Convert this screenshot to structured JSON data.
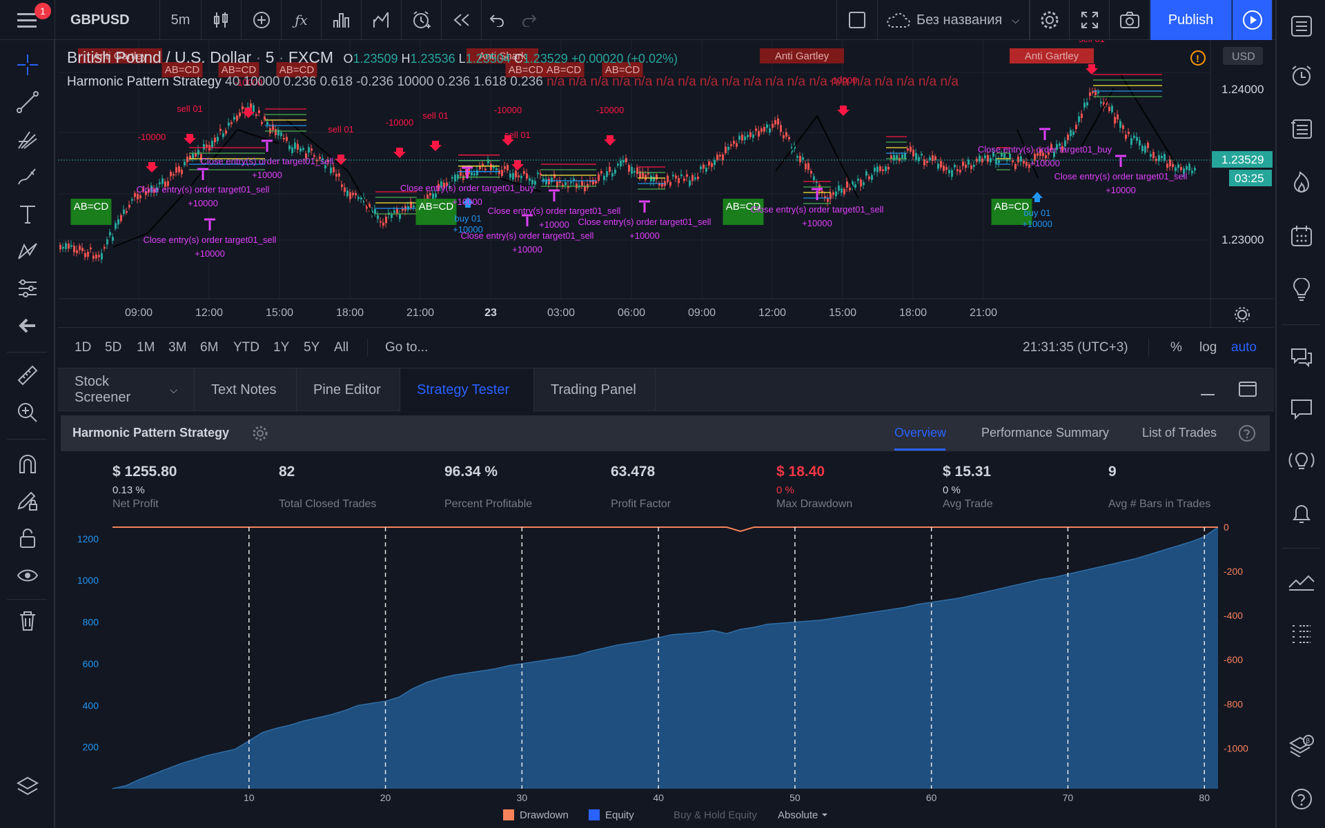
{
  "toolbar": {
    "notification_badge": "1",
    "symbol": "GBPUSD",
    "interval": "5m",
    "layout_name": "Без названия",
    "publish_label": "Publish"
  },
  "legend": {
    "title": "British Pound / U.S. Dollar",
    "interval": "5",
    "exchange": "FXCM",
    "o_label": "O",
    "o_value": "1.23509",
    "h_label": "H",
    "h_value": "1.23536",
    "l_label": "L",
    "l_value": "1.23504",
    "c_label": "C",
    "c_value": "1.23529",
    "change": "+0.00020 (+0.02%)",
    "indicator_name": "Harmonic Pattern Strategy",
    "indicator_params": "40 10000 0.236 0.618 -0.236 10000 0.236 1.618 0.236",
    "indicator_na": "n/a n/a n/a n/a n/a n/a n/a n/a n/a n/a n/a n/a n/a n/a n/a n/a n/a n/a n/a",
    "currency": "USD"
  },
  "price_axis": {
    "labels": [
      "1.24000",
      "1.23000"
    ],
    "current_price": "1.23529",
    "countdown": "03:25"
  },
  "time_axis": {
    "labels": [
      "09:00",
      "12:00",
      "15:00",
      "18:00",
      "21:00",
      "23",
      "03:00",
      "06:00",
      "09:00",
      "12:00",
      "15:00",
      "18:00",
      "21:00"
    ]
  },
  "chart_annotations": {
    "pattern_labels": [
      "Anti Gartley",
      "AB=CD",
      "AB=CD",
      "AB=CD",
      "Anti Shark",
      "AB=CD",
      "AB=CD",
      "AB=CD",
      "Anti Gartley",
      "Anti Gartley",
      "AB=CD",
      "AB=CD",
      "AB=CD",
      "AB=CD"
    ],
    "order_labels": [
      "-10000",
      "sell 01",
      "-10000",
      "sell 01",
      "-10000",
      "sell 01",
      "-10000",
      "sell 01",
      "-10000",
      "-10000",
      "sell 01",
      "-10000",
      "sell 01",
      "-10000",
      "sell 01",
      "-10000",
      "-10000",
      "sell 01",
      "+10000",
      "+10000",
      "+10000",
      "+10000",
      "+10000",
      "+10000",
      "+10000",
      "+10000",
      "+10000",
      "buy 01",
      "buy 01",
      "+10000"
    ],
    "close_labels": [
      "Close entry(s) order target01_sell",
      "Close entry(s) order target01_sell",
      "Close entry(s) order target01_sell",
      "Close entry(s) order target01_buy",
      "Close entry(s) order target01_sell",
      "Close entry(s) order target01_sell",
      "Close entry(s) order target01_sell",
      "Close entry(s) order target01_sell",
      "Close entry(s) order target01_buy",
      "Close entry(s) order target01_sell"
    ]
  },
  "timeframes": {
    "items": [
      "1D",
      "5D",
      "1M",
      "3M",
      "6M",
      "YTD",
      "1Y",
      "5Y",
      "All"
    ],
    "goto": "Go to...",
    "clock": "21:31:35 (UTC+3)",
    "percent": "%",
    "log": "log",
    "auto": "auto"
  },
  "panel_tabs": [
    "Stock Screener",
    "Text Notes",
    "Pine Editor",
    "Strategy Tester",
    "Trading Panel"
  ],
  "strategy": {
    "name": "Harmonic Pattern Strategy",
    "tabs": [
      "Overview",
      "Performance Summary",
      "List of Trades"
    ],
    "stats": [
      {
        "value": "$ 1255.80",
        "sub": "0.13 %",
        "label": "Net Profit"
      },
      {
        "value": "82",
        "sub": "",
        "label": "Total Closed Trades"
      },
      {
        "value": "96.34 %",
        "sub": "",
        "label": "Percent Profitable"
      },
      {
        "value": "63.478",
        "sub": "",
        "label": "Profit Factor"
      },
      {
        "value": "$ 18.40",
        "sub": "0 %",
        "label": "Max Drawdown"
      },
      {
        "value": "$ 15.31",
        "sub": "0 %",
        "label": "Avg Trade"
      },
      {
        "value": "9",
        "sub": "",
        "label": "Avg # Bars in Trades"
      }
    ],
    "legend": [
      "Drawdown",
      "Equity",
      "Buy & Hold Equity",
      "Absolute"
    ]
  },
  "colors": {
    "background": "#131722",
    "accent": "#2962ff",
    "equity": "#1f4f7f",
    "drawdown": "#f7825a",
    "up": "#26a69a",
    "down": "#ef5350",
    "buy": "#2196f3",
    "close": "#e040fb"
  },
  "chart_data": {
    "type": "area",
    "x": [
      0,
      1,
      2,
      3,
      4,
      5,
      6,
      7,
      8,
      9,
      10,
      11,
      12,
      13,
      14,
      15,
      16,
      17,
      18,
      19,
      20,
      21,
      22,
      23,
      24,
      25,
      26,
      27,
      28,
      29,
      30,
      31,
      32,
      33,
      34,
      35,
      36,
      37,
      38,
      39,
      40,
      41,
      42,
      43,
      44,
      45,
      46,
      47,
      48,
      49,
      50,
      51,
      52,
      53,
      54,
      55,
      56,
      57,
      58,
      59,
      60,
      61,
      62,
      63,
      64,
      65,
      66,
      67,
      68,
      69,
      70,
      71,
      72,
      73,
      74,
      75,
      76,
      77,
      78,
      79,
      80,
      81
    ],
    "series": [
      {
        "name": "Equity",
        "axis": "left",
        "values": [
          0,
          15,
          45,
          70,
          95,
          120,
          140,
          160,
          175,
          190,
          230,
          270,
          290,
          305,
          325,
          340,
          355,
          375,
          400,
          410,
          420,
          440,
          480,
          510,
          530,
          545,
          555,
          565,
          575,
          590,
          600,
          610,
          620,
          630,
          640,
          660,
          675,
          690,
          700,
          710,
          725,
          740,
          745,
          750,
          760,
          745,
          765,
          775,
          790,
          795,
          800,
          805,
          810,
          820,
          830,
          840,
          850,
          860,
          870,
          885,
          895,
          905,
          915,
          930,
          945,
          960,
          975,
          990,
          1005,
          1015,
          1030,
          1045,
          1060,
          1075,
          1090,
          1105,
          1125,
          1145,
          1165,
          1185,
          1210,
          1255.8
        ]
      },
      {
        "name": "Drawdown",
        "axis": "right",
        "values": [
          0,
          0,
          0,
          0,
          0,
          0,
          0,
          0,
          0,
          0,
          0,
          0,
          0,
          0,
          0,
          0,
          0,
          0,
          0,
          0,
          0,
          0,
          0,
          0,
          0,
          0,
          0,
          0,
          0,
          0,
          0,
          0,
          0,
          0,
          0,
          0,
          0,
          0,
          0,
          0,
          0,
          0,
          0,
          0,
          0,
          0,
          -18.4,
          0,
          0,
          0,
          0,
          0,
          0,
          0,
          0,
          0,
          0,
          0,
          0,
          0,
          0,
          0,
          0,
          0,
          0,
          0,
          0,
          0,
          0,
          0,
          0,
          0,
          0,
          0,
          0,
          0,
          0,
          0,
          0,
          0,
          0,
          0
        ]
      }
    ],
    "xticks": [
      10,
      20,
      30,
      40,
      50,
      60,
      70,
      80
    ],
    "yticks_left": [
      200,
      400,
      600,
      800,
      1000,
      1200
    ],
    "yticks_right": [
      0,
      -200,
      -400,
      -600,
      -800,
      -1000
    ],
    "xlim": [
      0,
      81
    ],
    "ylim_left": [
      0,
      1255.8
    ],
    "ylim_right": [
      -1183,
      0
    ],
    "grid": false,
    "legend": "bottom-center"
  }
}
